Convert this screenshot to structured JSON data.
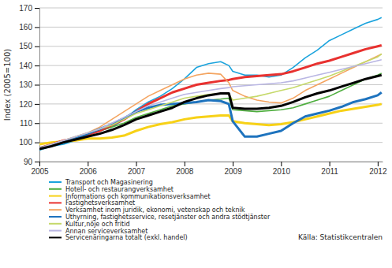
{
  "chart_data": {
    "type": "line",
    "y_label": "Index (2005=100)",
    "annotations": [
      "Källa: Statistikcentralen"
    ],
    "x": [
      2005,
      2005.25,
      2005.5,
      2005.75,
      2006,
      2006.25,
      2006.5,
      2006.75,
      2007,
      2007.25,
      2007.5,
      2007.75,
      2008,
      2008.25,
      2008.5,
      2008.75,
      2008.92,
      2009,
      2009.25,
      2009.5,
      2009.75,
      2010,
      2010.25,
      2010.5,
      2010.75,
      2011,
      2011.25,
      2011.5,
      2011.75,
      2012,
      2012.08
    ],
    "xlim": [
      2005,
      2012.1
    ],
    "xticks": [
      2005,
      2006,
      2007,
      2008,
      2009,
      2010,
      2011,
      2012
    ],
    "ylim": [
      90,
      170
    ],
    "yticks": [
      90,
      100,
      110,
      120,
      130,
      140,
      150,
      160,
      170
    ],
    "grid": true,
    "legend": "bottom",
    "series": [
      {
        "name": "Transport och Magasinering",
        "color": "#1aa3dd",
        "values": [
          96,
          98,
          99,
          101,
          104,
          106,
          108,
          112,
          117,
          121,
          124,
          128,
          133,
          139,
          141,
          142,
          140,
          137,
          135,
          135,
          134,
          135,
          139,
          144,
          148,
          153,
          156,
          159,
          162,
          164,
          165
        ]
      },
      {
        "name": "Hotell- och restaurangverksamhet",
        "color": "#4fae3f",
        "values": [
          97,
          99,
          101,
          102,
          104,
          106,
          108,
          110,
          113,
          115,
          117,
          119,
          120,
          121,
          122,
          122.5,
          123,
          117,
          116.5,
          116,
          116.5,
          117,
          118,
          120,
          122,
          124,
          127,
          130,
          133,
          135,
          136
        ]
      },
      {
        "name": "Informations och kommunikationsverksamhet",
        "color": "#f7d117",
        "values": [
          99,
          100,
          100.5,
          101,
          102,
          102,
          102.5,
          103.5,
          106,
          108,
          109.5,
          110.5,
          112,
          113,
          113.5,
          114,
          114,
          111,
          110,
          109.5,
          109,
          109.5,
          110.5,
          112,
          113.5,
          115,
          116.5,
          117.5,
          118.5,
          119.5,
          120
        ]
      },
      {
        "name": "Fastighetsverksamhet",
        "color": "#e8312f",
        "values": [
          97,
          99,
          101,
          102,
          104,
          106,
          109,
          112,
          116,
          120,
          123,
          126,
          128,
          130,
          131,
          132,
          132.5,
          133,
          134,
          134.5,
          135,
          135.5,
          137,
          139,
          141,
          142.5,
          144.5,
          146.5,
          148.5,
          150,
          150.5
        ]
      },
      {
        "name": "Verksamhet inom juridik, ekonomi, vetenskap och teknik",
        "color": "#f4a460",
        "values": [
          97,
          99,
          101,
          103,
          105,
          108,
          112,
          116,
          120,
          124,
          127,
          130,
          133,
          135,
          136,
          135.5,
          131,
          127,
          124,
          122,
          121,
          120.5,
          123,
          127,
          130,
          133,
          136,
          139,
          142,
          145,
          146
        ]
      },
      {
        "name": "Uthyrning, fastighetsservice, resetjänster och andra stödtjänster",
        "color": "#1e73be",
        "values": [
          97,
          98.5,
          100,
          102,
          104.5,
          107,
          109.5,
          112.5,
          116,
          118,
          119.5,
          120,
          120.5,
          121,
          122,
          121.5,
          120,
          111,
          103,
          103,
          104.5,
          106,
          110,
          113.5,
          115,
          116.5,
          118.5,
          121,
          122.5,
          124.5,
          126
        ]
      },
      {
        "name": "Kultur,nöje och fritid",
        "color": "#c5d96a",
        "values": [
          97,
          99,
          101,
          103,
          105,
          107,
          109,
          112,
          115,
          117,
          119,
          121,
          123,
          124,
          125,
          125.5,
          125,
          122,
          123,
          124,
          125.5,
          127,
          128.5,
          130.5,
          132.5,
          134.5,
          137,
          139.5,
          142,
          144.5,
          146
        ]
      },
      {
        "name": "Annan serviceverksamhet",
        "color": "#b9b6e3",
        "values": [
          97,
          99,
          101,
          103,
          105,
          107,
          110,
          113,
          116,
          119,
          121,
          123,
          125,
          126,
          127,
          128,
          128.5,
          129,
          129.5,
          130,
          130.5,
          131,
          132,
          133.5,
          135,
          136.5,
          138,
          139.5,
          141,
          142.5,
          143
        ]
      },
      {
        "name": "Servicenäringarna totalt (exkl. handel)",
        "color": "#000000",
        "values": [
          96.5,
          98,
          100,
          101.5,
          103,
          104.5,
          106.5,
          109,
          112,
          114,
          116,
          118,
          121,
          123,
          124.5,
          125.5,
          125.5,
          118,
          117.5,
          117.5,
          118,
          119,
          121,
          123.5,
          125.5,
          127,
          129,
          131,
          133,
          134.5,
          135
        ]
      }
    ]
  }
}
